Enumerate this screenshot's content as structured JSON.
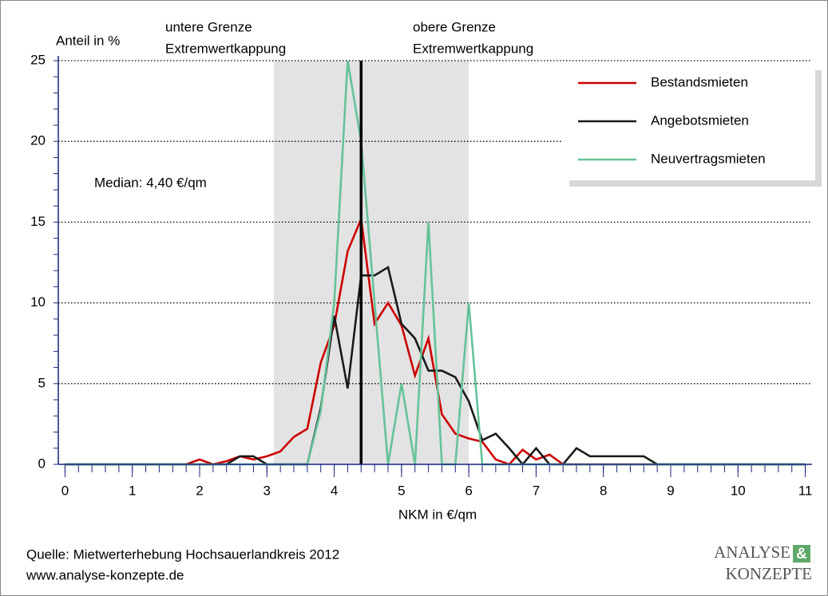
{
  "chart_data": {
    "type": "line",
    "ylabel": "Anteil in %",
    "xlabel": "NKM in €/qm",
    "annotations": {
      "lower": [
        "untere Grenze",
        "Extremwertkappung"
      ],
      "upper": [
        "obere Grenze",
        "Extremwertkappung"
      ],
      "median_text": "Median: 4,40 €/qm"
    },
    "median": 4.4,
    "shaded_range": [
      3.1,
      6.0
    ],
    "x": [
      0,
      0.2,
      0.4,
      0.6,
      0.8,
      1,
      1.2,
      1.4,
      1.6,
      1.8,
      2,
      2.2,
      2.4,
      2.6,
      2.8,
      3,
      3.2,
      3.4,
      3.6,
      3.8,
      4,
      4.2,
      4.4,
      4.6,
      4.8,
      5,
      5.2,
      5.4,
      5.6,
      5.8,
      6,
      6.2,
      6.4,
      6.6,
      6.8,
      7,
      7.2,
      7.4,
      7.6,
      7.8,
      8,
      8.2,
      8.4,
      8.6,
      8.8,
      9,
      9.2,
      9.4,
      9.6,
      9.8,
      10,
      10.2,
      10.4,
      10.6,
      10.8,
      11
    ],
    "series": [
      {
        "name": "Bestandsmieten",
        "color": "#cc0000",
        "values": [
          0,
          0,
          0,
          0,
          0,
          0,
          0,
          0,
          0,
          0,
          0.3,
          0,
          0.2,
          0.5,
          0.3,
          0.5,
          0.8,
          1.7,
          2.2,
          6.3,
          8.6,
          13.2,
          15.2,
          8.7,
          10,
          8.6,
          5.5,
          7.8,
          3.1,
          1.9,
          1.6,
          1.4,
          0.3,
          0,
          0.9,
          0.3,
          0.6,
          0,
          0,
          0,
          0,
          0,
          0,
          0,
          0,
          0,
          0,
          0,
          0,
          0,
          0,
          0,
          0,
          0,
          0,
          0
        ]
      },
      {
        "name": "Angebotsmieten",
        "color": "#1a1a1a",
        "values": [
          0,
          0,
          0,
          0,
          0,
          0,
          0,
          0,
          0,
          0,
          0,
          0,
          0,
          0.5,
          0.5,
          0,
          0,
          0,
          0,
          3.5,
          9.2,
          4.7,
          11.7,
          11.7,
          12.2,
          8.7,
          7.8,
          5.8,
          5.8,
          5.4,
          3.9,
          1.5,
          1.9,
          1.0,
          0,
          1.0,
          0,
          0,
          1.0,
          0.5,
          0.5,
          0.5,
          0.5,
          0.5,
          0,
          0,
          0,
          0,
          0,
          0,
          0,
          0,
          0,
          0,
          0,
          0
        ]
      },
      {
        "name": "Neuvertragsmieten",
        "color": "#66c299",
        "values": [
          0,
          0,
          0,
          0,
          0,
          0,
          0,
          0,
          0,
          0,
          0,
          0,
          0,
          0,
          0,
          0,
          0,
          0,
          0,
          3.3,
          10,
          25,
          20,
          10,
          0,
          5,
          0,
          15,
          0,
          0,
          10,
          0,
          0,
          0,
          0,
          0,
          0,
          0,
          0,
          0,
          0,
          0,
          0,
          0,
          0,
          0,
          0,
          0,
          0,
          0,
          0,
          0,
          0,
          0,
          0,
          0
        ]
      }
    ],
    "xlim": [
      -0.1,
      11.1
    ],
    "xticks": [
      0,
      1,
      2,
      3,
      4,
      5,
      6,
      7,
      8,
      9,
      10,
      11
    ],
    "ylim": [
      0,
      25
    ],
    "yticks": [
      0,
      5,
      10,
      15,
      20,
      25
    ],
    "y_minor_ticks": [
      0,
      1,
      2,
      3,
      4,
      5,
      6,
      7,
      8,
      9,
      10,
      11,
      12,
      13,
      14,
      15,
      16,
      17,
      18,
      19,
      20,
      21,
      22,
      23,
      24,
      25
    ],
    "grid": true,
    "legend": "upper right"
  },
  "footer": {
    "source": "Quelle: Mietwerterhebung Hochsauerlandkreis 2012",
    "url": "www.analyse-konzepte.de",
    "logo": [
      "ANALYSE",
      "&",
      "KONZEPTE"
    ]
  }
}
